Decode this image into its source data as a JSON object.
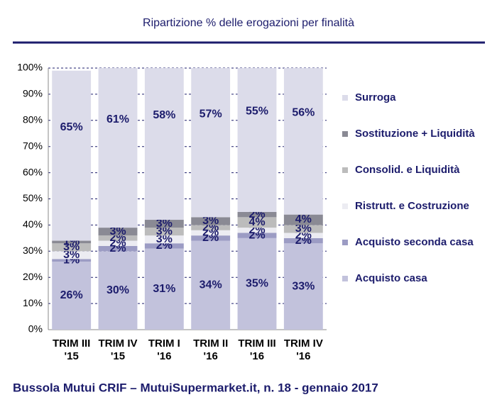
{
  "chart_data": {
    "type": "stacked-bar",
    "title": "Ripartizione % delle erogazioni per finalità",
    "source": "Bussola Mutui CRIF – MutuiSupermarket.it, n. 18 - gennaio 2017",
    "categories": [
      [
        "TRIM III",
        "'15"
      ],
      [
        "TRIM IV",
        "'15"
      ],
      [
        "TRIM I",
        "'16"
      ],
      [
        "TRIM II",
        "'16"
      ],
      [
        "TRIM III",
        "'16"
      ],
      [
        "TRIM IV",
        "'16"
      ]
    ],
    "series": [
      {
        "name": "Acquisto casa",
        "color": "#c2c2dc",
        "values": [
          26,
          30,
          31,
          34,
          35,
          33
        ],
        "value_labels": [
          "26%",
          "30%",
          "31%",
          "34%",
          "35%",
          "33%"
        ]
      },
      {
        "name": "Acquisto seconda casa",
        "color": "#9c9cc4",
        "values": [
          1,
          2,
          2,
          2,
          2,
          2
        ],
        "value_labels": [
          "1%",
          "2%",
          "2%",
          "2%",
          "2%",
          "2%"
        ]
      },
      {
        "name": "Ristrutt. e Costruzione",
        "color": "#ececf2",
        "values": [
          3,
          2,
          3,
          2,
          2,
          2
        ],
        "value_labels": [
          "3%",
          "2%",
          "3%",
          "2%",
          "2%",
          "2%"
        ]
      },
      {
        "name": "Consolid. e Liquidità",
        "color": "#bcbcbc",
        "values": [
          3,
          2,
          3,
          2,
          4,
          3
        ],
        "value_labels": [
          "3%",
          "2%",
          "3%",
          "2%",
          "4%",
          "3%"
        ]
      },
      {
        "name": "Sostituzione + Liquidità",
        "color": "#8a8a94",
        "values": [
          1,
          3,
          3,
          3,
          2,
          4
        ],
        "value_labels": [
          "1%",
          "3%",
          "3%",
          "3%",
          "2%",
          "4%"
        ]
      },
      {
        "name": "Surroga",
        "color": "#dcdcea",
        "values": [
          65,
          61,
          58,
          57,
          55,
          56
        ],
        "value_labels": [
          "65%",
          "61%",
          "58%",
          "57%",
          "55%",
          "56%"
        ]
      }
    ],
    "ylim": [
      0,
      100
    ],
    "yticks": [
      {
        "value": 0,
        "label": "0%"
      },
      {
        "value": 10,
        "label": "10%"
      },
      {
        "value": 20,
        "label": "20%"
      },
      {
        "value": 30,
        "label": "30%"
      },
      {
        "value": 40,
        "label": "40%"
      },
      {
        "value": 50,
        "label": "50%"
      },
      {
        "value": 60,
        "label": "60%"
      },
      {
        "value": 70,
        "label": "70%"
      },
      {
        "value": 80,
        "label": "80%"
      },
      {
        "value": 90,
        "label": "90%"
      },
      {
        "value": 100,
        "label": "100%"
      }
    ],
    "grid": true
  }
}
